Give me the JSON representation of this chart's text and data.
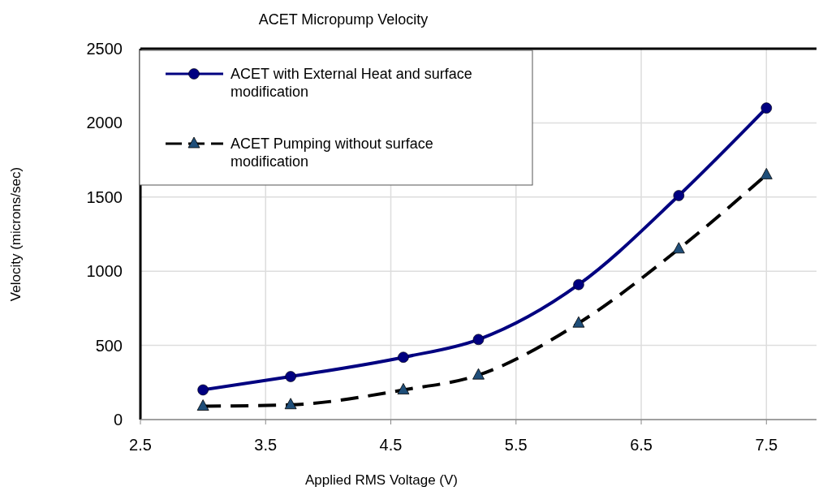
{
  "chart_data": {
    "type": "line",
    "title": "ACET Micropump Velocity",
    "xlabel": "Applied RMS Voltage (V)",
    "ylabel": "Velocity (microns/sec)",
    "x": [
      3.0,
      3.7,
      4.6,
      5.2,
      6.0,
      6.8,
      7.5
    ],
    "series": [
      {
        "name": "ACET with External Heat and surface modification",
        "color": "#000080",
        "values": [
          200,
          290,
          420,
          540,
          910,
          1510,
          2100
        ],
        "marker": "circle",
        "line_style": "solid"
      },
      {
        "name": "ACET Pumping without surface modification",
        "color": "#000000",
        "values": [
          90,
          100,
          200,
          300,
          650,
          1150,
          1650
        ],
        "marker": "triangle",
        "line_style": "dashed"
      }
    ],
    "xlim": [
      2.5,
      7.9
    ],
    "xticks": [
      2.5,
      3.5,
      4.5,
      5.5,
      6.5,
      7.5
    ],
    "ylim": [
      0,
      2500
    ],
    "yticks": [
      0,
      500,
      1000,
      1500,
      2000,
      2500
    ],
    "grid": true,
    "legend": "top left"
  }
}
